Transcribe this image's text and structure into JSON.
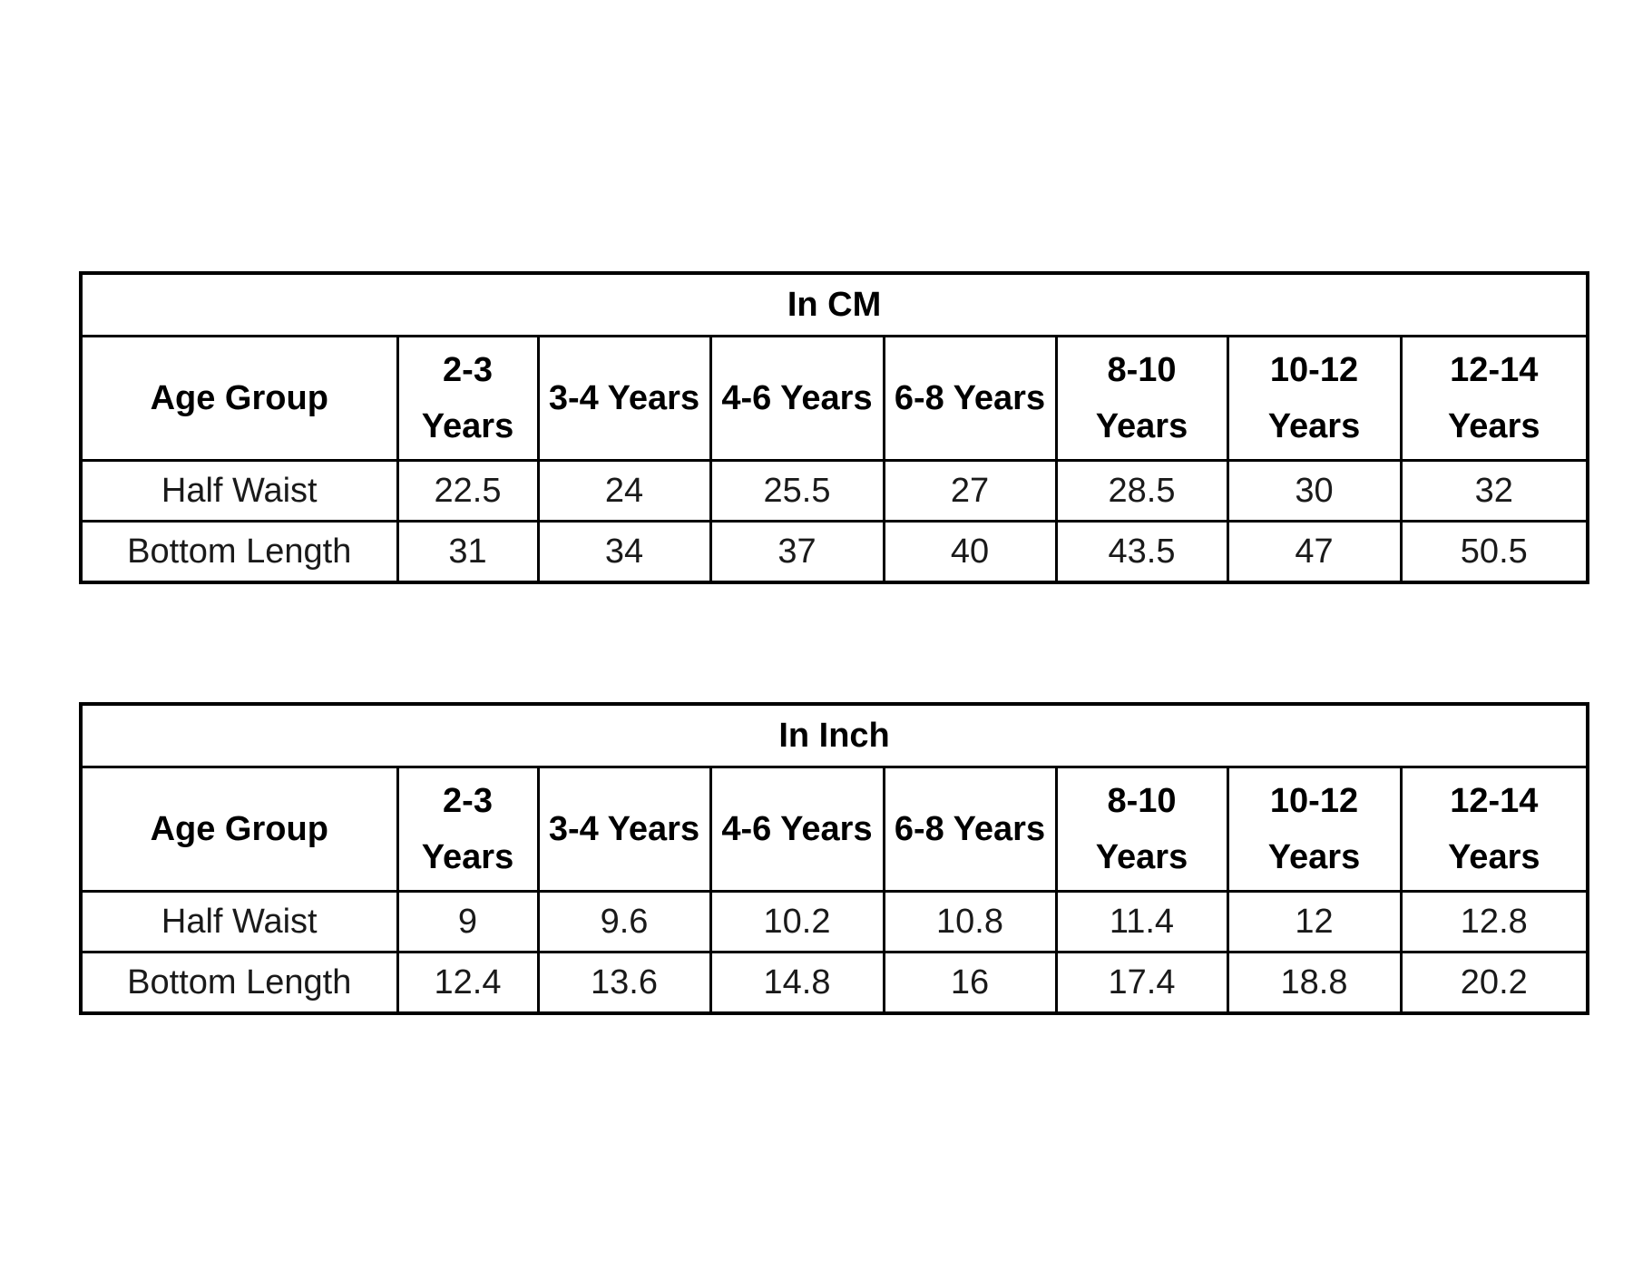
{
  "tables": [
    {
      "title": "In CM",
      "header": [
        "Age Group",
        "2-3 Years",
        "3-4 Years",
        "4-6 Years",
        "6-8 Years",
        "8-10 Years",
        "10-12 Years",
        "12-14 Years"
      ],
      "rows": [
        [
          "Half Waist",
          22.5,
          24,
          25.5,
          27,
          28.5,
          30,
          32
        ],
        [
          "Bottom Length",
          31,
          34,
          37,
          40,
          43.5,
          47,
          50.5
        ]
      ]
    },
    {
      "title": "In Inch",
      "header": [
        "Age Group",
        "2-3 Years",
        "3-4 Years",
        "4-6 Years",
        "6-8 Years",
        "8-10 Years",
        "10-12 Years",
        "12-14 Years"
      ],
      "rows": [
        [
          "Half Waist",
          9,
          9.6,
          10.2,
          10.8,
          11.4,
          12,
          12.8
        ],
        [
          "Bottom Length",
          12.4,
          13.6,
          14.8,
          16,
          17.4,
          18.8,
          20.2
        ]
      ]
    }
  ]
}
